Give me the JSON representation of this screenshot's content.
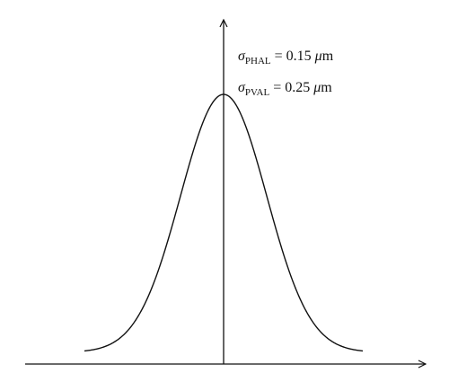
{
  "chart_data": {
    "type": "line",
    "title": "",
    "xlabel": "",
    "ylabel": "",
    "grid": false,
    "curve": "gaussian",
    "annotations": [
      {
        "symbol": "σ",
        "subscript": "PHAL",
        "equals": "=",
        "value": "0.15",
        "unit_prefix": "μ",
        "unit": "m"
      },
      {
        "symbol": "σ",
        "subscript": "PVAL",
        "equals": "=",
        "value": "0.25",
        "unit_prefix": "μ",
        "unit": "m"
      }
    ],
    "colors": {
      "curve": "#111111",
      "axis": "#111111"
    }
  }
}
